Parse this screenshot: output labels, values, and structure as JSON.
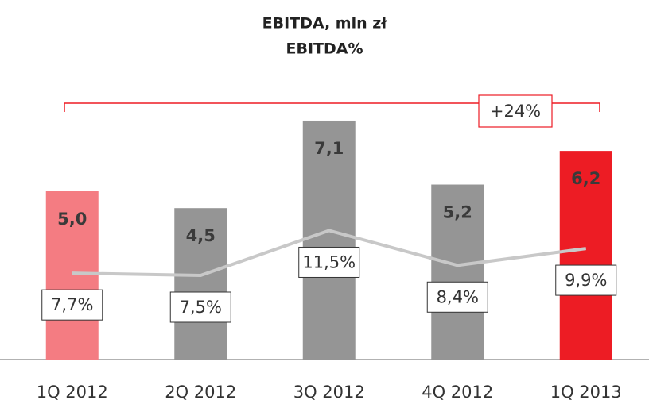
{
  "chart_data": {
    "type": "bar",
    "title": "EBITDA, mln zł",
    "subtitle": "EBITDA%",
    "annotation": "+24%",
    "categories": [
      "1Q 2012",
      "2Q 2012",
      "3Q 2012",
      "4Q 2012",
      "1Q 2013"
    ],
    "series": [
      {
        "name": "EBITDA, mln zł",
        "type": "bar",
        "colors": [
          "#f47c82",
          "#959595",
          "#959595",
          "#959595",
          "#ed1c24"
        ],
        "values": [
          5.0,
          4.5,
          7.1,
          5.2,
          6.2
        ],
        "value_labels": [
          "5,0",
          "4,5",
          "7,1",
          "5,2",
          "6,2"
        ]
      },
      {
        "name": "EBITDA%",
        "type": "line",
        "axis": "y2",
        "color": "#c8c8c8",
        "values": [
          7.7,
          7.5,
          11.5,
          8.4,
          9.9
        ],
        "value_labels": [
          "7,7%",
          "7,5%",
          "11,5%",
          "8,4%",
          "9,9%"
        ]
      }
    ],
    "ylim": [
      0,
      10
    ],
    "y2lim": [
      0,
      30
    ]
  }
}
